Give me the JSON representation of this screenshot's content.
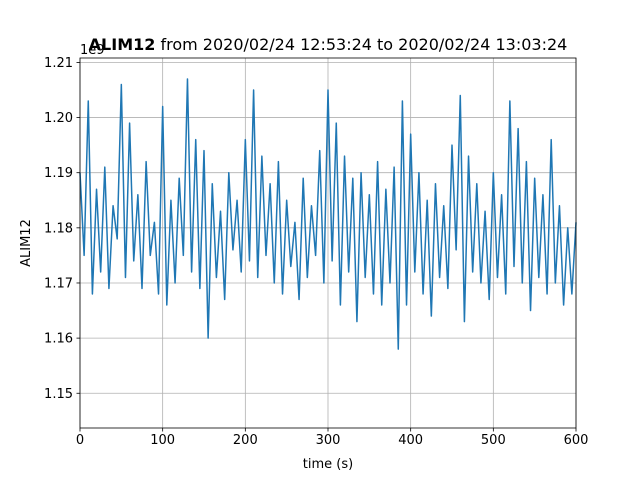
{
  "chart_data": {
    "type": "line",
    "title_bold": "ALIM12",
    "title_rest": " from 2020/02/24 12:53:24 to 2020/02/24 13:03:24",
    "xlabel": "time (s)",
    "ylabel": "ALIM12",
    "offset_text": "1e9",
    "xlim": [
      0,
      600
    ],
    "ylim": [
      1.1437,
      1.2108
    ],
    "y_multiplier": 1000000000,
    "grid": true,
    "x_ticks": [
      0,
      100,
      200,
      300,
      400,
      500,
      600
    ],
    "x_tick_labels": [
      "0",
      "100",
      "200",
      "300",
      "400",
      "500",
      "600"
    ],
    "y_ticks": [
      1.15,
      1.16,
      1.17,
      1.18,
      1.19,
      1.2,
      1.21
    ],
    "y_tick_labels": [
      "1.15",
      "1.16",
      "1.17",
      "1.18",
      "1.19",
      "1.20",
      "1.21"
    ],
    "series": [
      {
        "color": "#1f77b4",
        "x": [
          0,
          5,
          10,
          15,
          20,
          25,
          30,
          35,
          40,
          45,
          50,
          55,
          60,
          65,
          70,
          75,
          80,
          85,
          90,
          95,
          100,
          105,
          110,
          115,
          120,
          125,
          130,
          135,
          140,
          145,
          150,
          155,
          160,
          165,
          170,
          175,
          180,
          185,
          190,
          195,
          200,
          205,
          210,
          215,
          220,
          225,
          230,
          235,
          240,
          245,
          250,
          255,
          260,
          265,
          270,
          275,
          280,
          285,
          290,
          295,
          300,
          305,
          310,
          315,
          320,
          325,
          330,
          335,
          340,
          345,
          350,
          355,
          360,
          365,
          370,
          375,
          380,
          385,
          390,
          395,
          400,
          405,
          410,
          415,
          420,
          425,
          430,
          435,
          440,
          445,
          450,
          455,
          460,
          465,
          470,
          475,
          480,
          485,
          490,
          495,
          500,
          505,
          510,
          515,
          520,
          525,
          530,
          535,
          540,
          545,
          550,
          555,
          560,
          565,
          570,
          575,
          580,
          585,
          590,
          595,
          600
        ],
        "y": [
          1.19,
          1.175,
          1.203,
          1.168,
          1.187,
          1.172,
          1.191,
          1.169,
          1.184,
          1.178,
          1.206,
          1.171,
          1.199,
          1.174,
          1.186,
          1.169,
          1.192,
          1.175,
          1.181,
          1.168,
          1.202,
          1.166,
          1.185,
          1.17,
          1.189,
          1.175,
          1.207,
          1.172,
          1.196,
          1.169,
          1.194,
          1.16,
          1.188,
          1.171,
          1.183,
          1.167,
          1.19,
          1.176,
          1.185,
          1.172,
          1.196,
          1.174,
          1.205,
          1.171,
          1.193,
          1.175,
          1.188,
          1.17,
          1.192,
          1.168,
          1.185,
          1.173,
          1.181,
          1.167,
          1.189,
          1.171,
          1.184,
          1.175,
          1.194,
          1.17,
          1.205,
          1.174,
          1.199,
          1.166,
          1.193,
          1.172,
          1.189,
          1.163,
          1.19,
          1.171,
          1.186,
          1.168,
          1.192,
          1.166,
          1.187,
          1.17,
          1.191,
          1.158,
          1.203,
          1.166,
          1.197,
          1.172,
          1.19,
          1.168,
          1.185,
          1.164,
          1.188,
          1.171,
          1.184,
          1.169,
          1.195,
          1.176,
          1.204,
          1.163,
          1.193,
          1.172,
          1.188,
          1.17,
          1.183,
          1.167,
          1.19,
          1.171,
          1.186,
          1.168,
          1.203,
          1.173,
          1.198,
          1.17,
          1.192,
          1.165,
          1.189,
          1.171,
          1.186,
          1.168,
          1.196,
          1.17,
          1.184,
          1.166,
          1.18,
          1.168,
          1.181
        ]
      }
    ]
  }
}
